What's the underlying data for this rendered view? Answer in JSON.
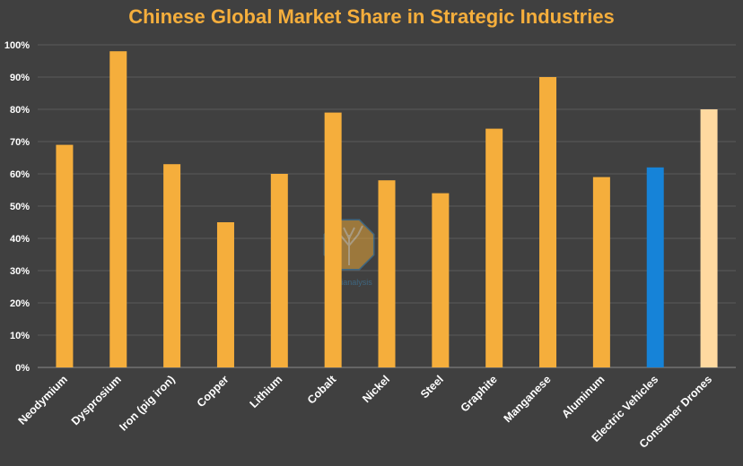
{
  "chart_data": {
    "type": "bar",
    "title": "Chinese Global Market Share in Strategic Industries",
    "categories": [
      "Neodymium",
      "Dysprosium",
      "Iron (pig iron)",
      "Copper",
      "Lithium",
      "Cobalt",
      "Nickel",
      "Steel",
      "Graphite",
      "Manganese",
      "Aluminum",
      "Electric Vehicles",
      "Consumer Drones"
    ],
    "series": [
      {
        "values": [
          69,
          98,
          63,
          45,
          60,
          79,
          58,
          54,
          74,
          90,
          59,
          62,
          80
        ],
        "colors": [
          "#F5AE3C",
          "#F5AE3C",
          "#F5AE3C",
          "#F5AE3C",
          "#F5AE3C",
          "#F5AE3C",
          "#F5AE3C",
          "#F5AE3C",
          "#F5AE3C",
          "#F5AE3C",
          "#F5AE3C",
          "#1683D8",
          "#FFD9A0"
        ]
      }
    ],
    "ylim": [
      0,
      100
    ],
    "yticks": [
      "0%",
      "10%",
      "20%",
      "30%",
      "40%",
      "50%",
      "60%",
      "70%",
      "80%",
      "90%",
      "100%"
    ],
    "xlabel": "",
    "ylabel": "",
    "grid": true,
    "legend": "none"
  },
  "watermark": {
    "text": "semianalysis",
    "icon": "tree-logo-icon"
  },
  "colors": {
    "background": "#404040",
    "title": "#F5AE3C",
    "gridline": "#5A5A5A",
    "axis": "#8A8A8A"
  }
}
